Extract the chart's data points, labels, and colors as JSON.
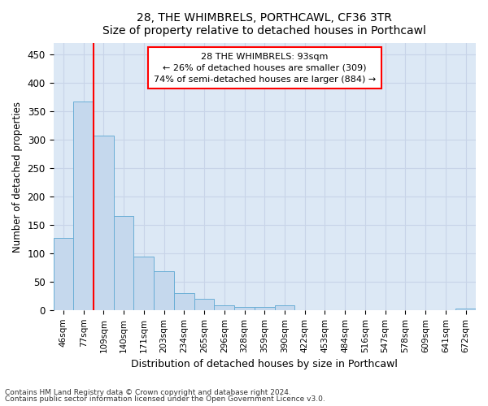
{
  "title": "28, THE WHIMBRELS, PORTHCAWL, CF36 3TR",
  "subtitle": "Size of property relative to detached houses in Porthcawl",
  "xlabel": "Distribution of detached houses by size in Porthcawl",
  "ylabel": "Number of detached properties",
  "footer_line1": "Contains HM Land Registry data © Crown copyright and database right 2024.",
  "footer_line2": "Contains public sector information licensed under the Open Government Licence v3.0.",
  "categories": [
    "46sqm",
    "77sqm",
    "109sqm",
    "140sqm",
    "171sqm",
    "203sqm",
    "234sqm",
    "265sqm",
    "296sqm",
    "328sqm",
    "359sqm",
    "390sqm",
    "422sqm",
    "453sqm",
    "484sqm",
    "516sqm",
    "547sqm",
    "578sqm",
    "609sqm",
    "641sqm",
    "672sqm"
  ],
  "values": [
    127,
    368,
    307,
    165,
    94,
    68,
    30,
    20,
    8,
    5,
    5,
    8,
    0,
    0,
    0,
    0,
    0,
    0,
    0,
    0,
    3
  ],
  "bar_color": "#c5d8ed",
  "bar_edge_color": "#6aaed6",
  "grid_color": "#c8d4e8",
  "background_color": "#dce8f5",
  "annotation_text_line1": "28 THE WHIMBRELS: 93sqm",
  "annotation_text_line2": "← 26% of detached houses are smaller (309)",
  "annotation_text_line3": "74% of semi-detached houses are larger (884) →",
  "red_line_x": 1.5,
  "ylim": [
    0,
    470
  ],
  "yticks": [
    0,
    50,
    100,
    150,
    200,
    250,
    300,
    350,
    400,
    450
  ]
}
